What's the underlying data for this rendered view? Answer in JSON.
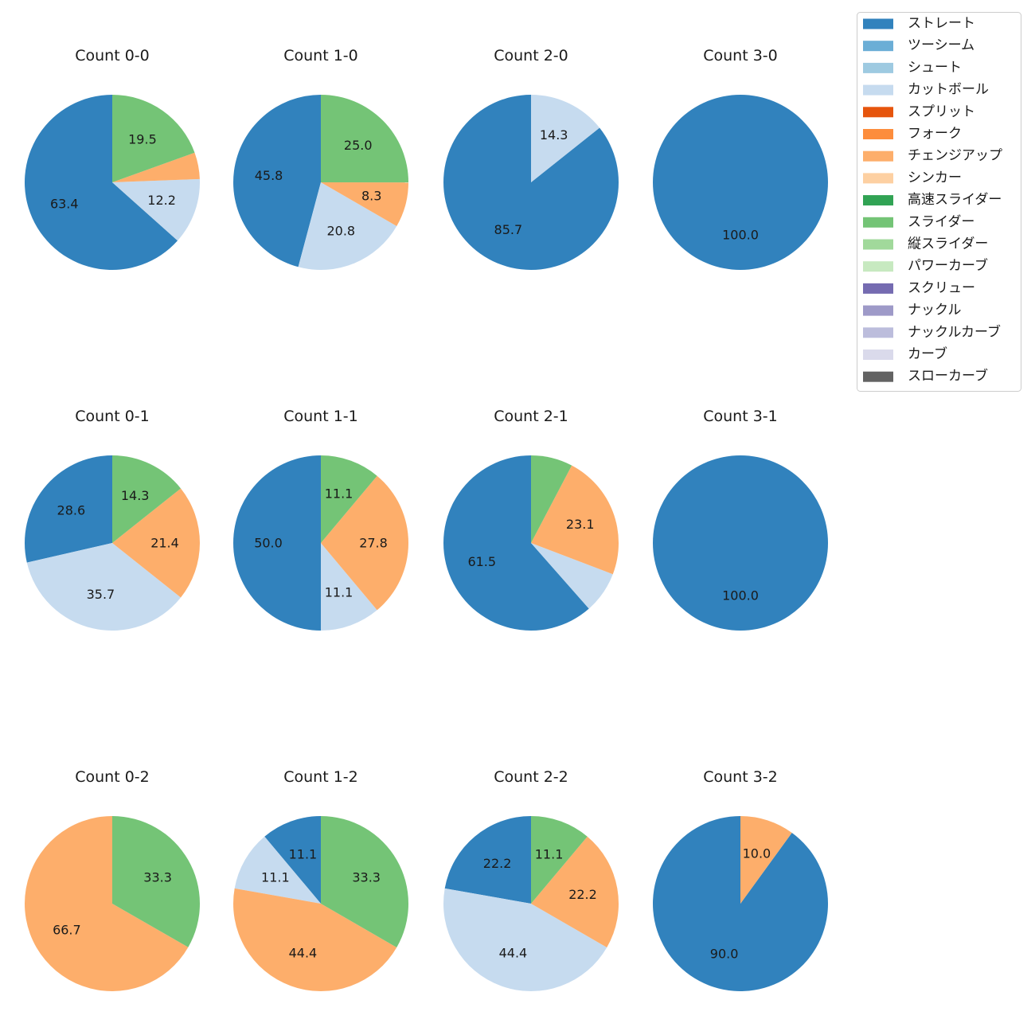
{
  "chart_data": {
    "type": "pie",
    "categories": [
      "ストレート",
      "ツーシーム",
      "シュート",
      "カットボール",
      "スプリット",
      "フォーク",
      "チェンジアップ",
      "シンカー",
      "高速スライダー",
      "スライダー",
      "縦スライダー",
      "パワーカーブ",
      "スクリュー",
      "ナックル",
      "ナックルカーブ",
      "カーブ",
      "スローカーブ"
    ],
    "colors": [
      "#3182bd",
      "#6baed6",
      "#9ecae1",
      "#c6dbef",
      "#e6550d",
      "#fd8d3c",
      "#fdae6b",
      "#fdd0a2",
      "#31a354",
      "#74c476",
      "#a1d99b",
      "#c7e9c0",
      "#756bb1",
      "#9e9ac8",
      "#bcbddc",
      "#dadaeb",
      "#636363"
    ],
    "legend_position": "top-right",
    "pies": [
      {
        "title": "Count 0-0",
        "slices": [
          {
            "category": "ストレート",
            "value": 63.4,
            "label": "63.4"
          },
          {
            "category": "カットボール",
            "value": 12.2,
            "label": "12.2"
          },
          {
            "category": "チェンジアップ",
            "value": 4.9,
            "label": ""
          },
          {
            "category": "スライダー",
            "value": 19.5,
            "label": "19.5"
          }
        ]
      },
      {
        "title": "Count 1-0",
        "slices": [
          {
            "category": "ストレート",
            "value": 45.8,
            "label": "45.8"
          },
          {
            "category": "カットボール",
            "value": 20.8,
            "label": "20.8"
          },
          {
            "category": "チェンジアップ",
            "value": 8.3,
            "label": "8.3"
          },
          {
            "category": "スライダー",
            "value": 25.0,
            "label": "25.0"
          }
        ]
      },
      {
        "title": "Count 2-0",
        "slices": [
          {
            "category": "ストレート",
            "value": 85.7,
            "label": "85.7"
          },
          {
            "category": "カットボール",
            "value": 14.3,
            "label": "14.3"
          }
        ]
      },
      {
        "title": "Count 3-0",
        "slices": [
          {
            "category": "ストレート",
            "value": 100.0,
            "label": "100.0"
          }
        ]
      },
      {
        "title": "Count 0-1",
        "slices": [
          {
            "category": "ストレート",
            "value": 28.6,
            "label": "28.6"
          },
          {
            "category": "カットボール",
            "value": 35.7,
            "label": "35.7"
          },
          {
            "category": "チェンジアップ",
            "value": 21.4,
            "label": "21.4"
          },
          {
            "category": "スライダー",
            "value": 14.3,
            "label": "14.3"
          }
        ]
      },
      {
        "title": "Count 1-1",
        "slices": [
          {
            "category": "ストレート",
            "value": 50.0,
            "label": "50.0"
          },
          {
            "category": "カットボール",
            "value": 11.1,
            "label": "11.1"
          },
          {
            "category": "チェンジアップ",
            "value": 27.8,
            "label": "27.8"
          },
          {
            "category": "スライダー",
            "value": 11.1,
            "label": "11.1"
          }
        ]
      },
      {
        "title": "Count 2-1",
        "slices": [
          {
            "category": "ストレート",
            "value": 61.5,
            "label": "61.5"
          },
          {
            "category": "カットボール",
            "value": 7.7,
            "label": ""
          },
          {
            "category": "チェンジアップ",
            "value": 23.1,
            "label": "23.1"
          },
          {
            "category": "スライダー",
            "value": 7.7,
            "label": ""
          }
        ]
      },
      {
        "title": "Count 3-1",
        "slices": [
          {
            "category": "ストレート",
            "value": 100.0,
            "label": "100.0"
          }
        ]
      },
      {
        "title": "Count 0-2",
        "slices": [
          {
            "category": "チェンジアップ",
            "value": 66.7,
            "label": "66.7"
          },
          {
            "category": "スライダー",
            "value": 33.3,
            "label": "33.3"
          }
        ]
      },
      {
        "title": "Count 1-2",
        "slices": [
          {
            "category": "ストレート",
            "value": 11.1,
            "label": "11.1"
          },
          {
            "category": "カットボール",
            "value": 11.1,
            "label": "11.1"
          },
          {
            "category": "チェンジアップ",
            "value": 44.4,
            "label": "44.4"
          },
          {
            "category": "スライダー",
            "value": 33.3,
            "label": "33.3"
          }
        ]
      },
      {
        "title": "Count 2-2",
        "slices": [
          {
            "category": "ストレート",
            "value": 22.2,
            "label": "22.2"
          },
          {
            "category": "カットボール",
            "value": 44.4,
            "label": "44.4"
          },
          {
            "category": "チェンジアップ",
            "value": 22.2,
            "label": "22.2"
          },
          {
            "category": "スライダー",
            "value": 11.1,
            "label": "11.1"
          }
        ]
      },
      {
        "title": "Count 3-2",
        "slices": [
          {
            "category": "ストレート",
            "value": 90.0,
            "label": "90.0"
          },
          {
            "category": "チェンジアップ",
            "value": 10.0,
            "label": "10.0"
          }
        ]
      }
    ]
  }
}
